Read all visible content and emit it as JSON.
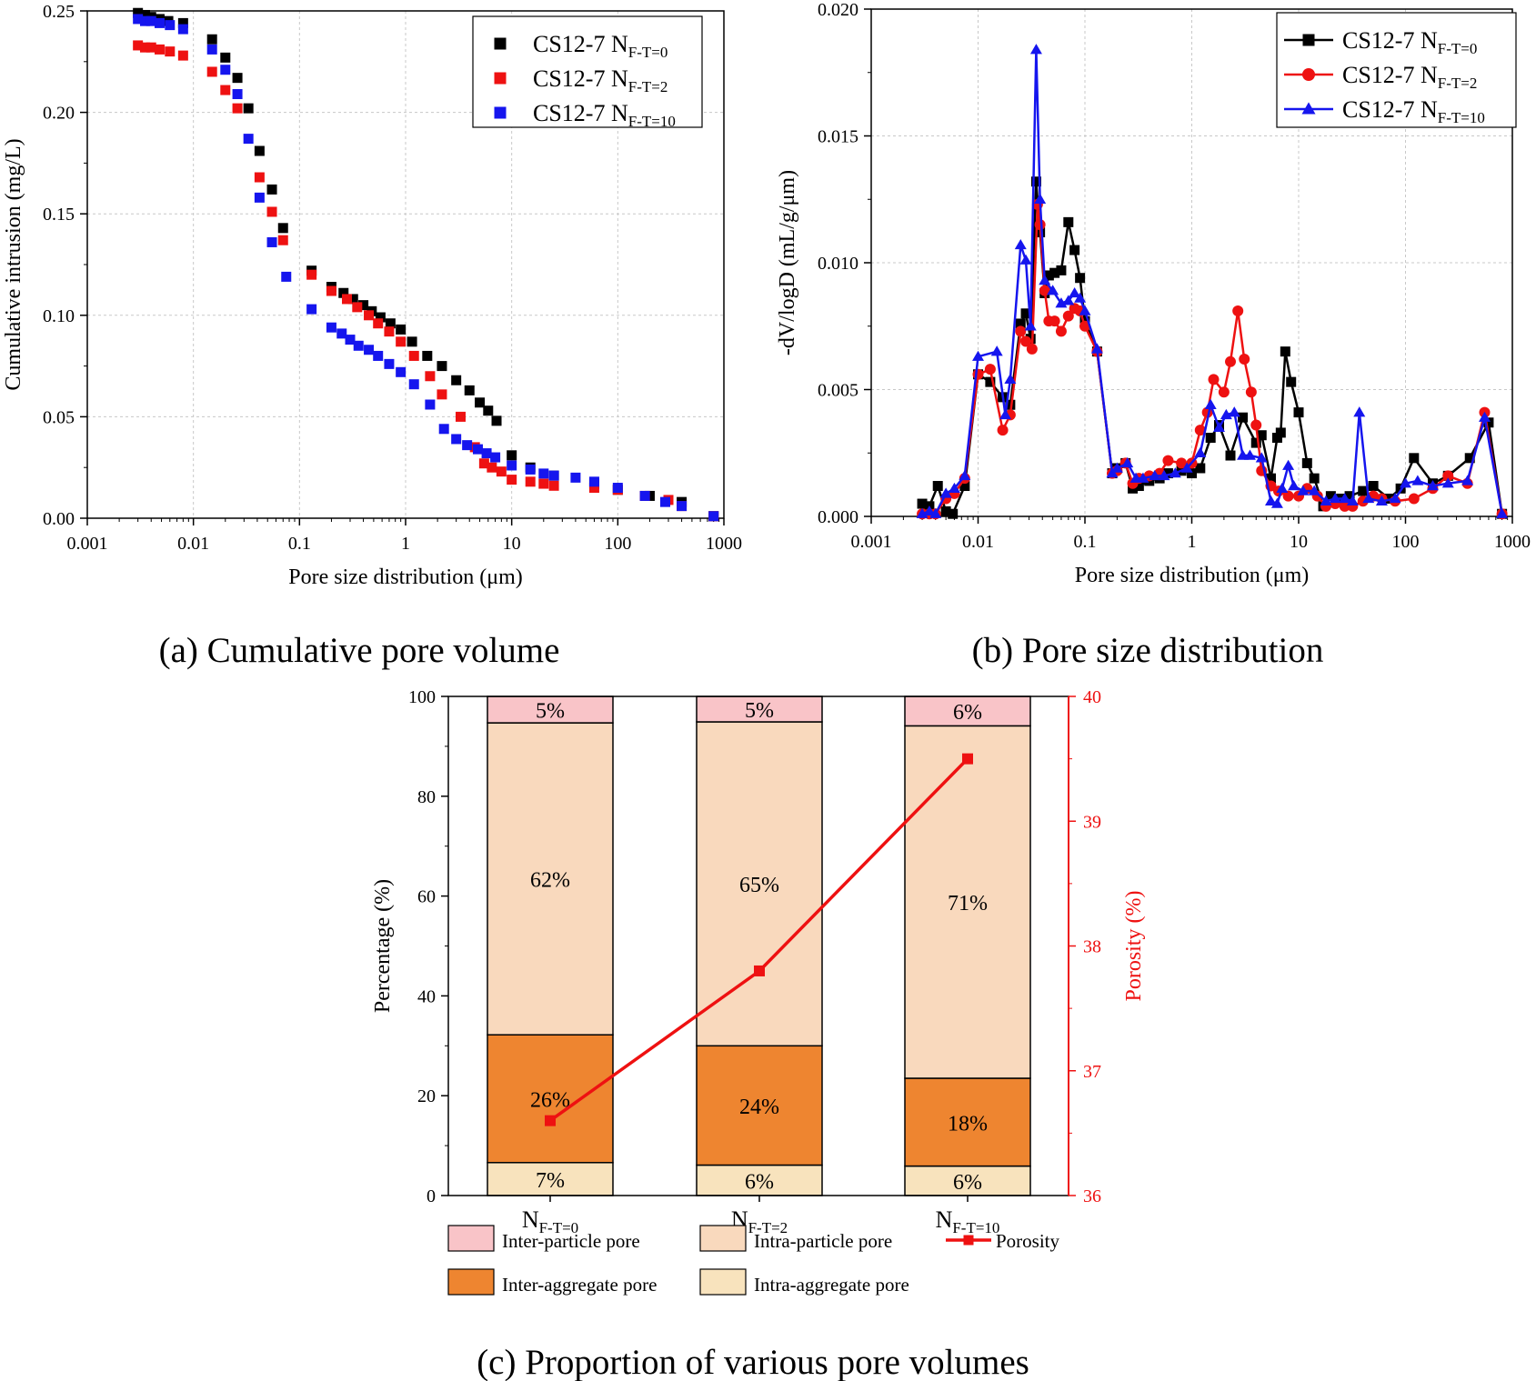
{
  "captions": {
    "a": "(a) Cumulative pore volume",
    "b": "(b) Pore size distribution",
    "c": "(c) Proportion of various pore volumes"
  },
  "series_labels": {
    "prefix": "CS12-7 N",
    "subs": [
      "F-T=0",
      "F-T=2",
      "F-T=10"
    ]
  },
  "colors": {
    "s0": "#000000",
    "s1": "#ee1111",
    "s2": "#1515ee"
  },
  "chart_data": [
    {
      "id": "a",
      "type": "scatter",
      "title": "",
      "xlabel": "Pore size distribution (μm)",
      "ylabel": "Cumulative intrusion (mg/L)",
      "xscale": "log",
      "xlim": [
        0.001,
        1000
      ],
      "ylim": [
        0,
        0.25
      ],
      "xticks": [
        0.001,
        0.01,
        0.1,
        1,
        10,
        100,
        1000
      ],
      "xtick_labels": [
        "0.001",
        "0.01",
        "0.1",
        "1",
        "10",
        "100",
        "1000"
      ],
      "yticks": [
        0,
        0.05,
        0.1,
        0.15,
        0.2,
        0.25
      ],
      "ytick_labels": [
        "0.00",
        "0.05",
        "0.10",
        "0.15",
        "0.20",
        "0.25"
      ],
      "grid": true,
      "legend": "top-right",
      "series": [
        {
          "name": "CS12-7 NF-T=0",
          "marker": "square",
          "x": [
            0.003,
            0.0035,
            0.004,
            0.0048,
            0.0058,
            0.008,
            0.015,
            0.02,
            0.026,
            0.033,
            0.042,
            0.055,
            0.07,
            0.13,
            0.2,
            0.26,
            0.32,
            0.4,
            0.48,
            0.58,
            0.72,
            0.9,
            1.15,
            1.6,
            2.2,
            3,
            4,
            5,
            6,
            7.2,
            10,
            15,
            25,
            60,
            100,
            200,
            400,
            800
          ],
          "y": [
            0.249,
            0.248,
            0.247,
            0.246,
            0.245,
            0.244,
            0.236,
            0.227,
            0.217,
            0.202,
            0.181,
            0.162,
            0.143,
            0.122,
            0.114,
            0.111,
            0.108,
            0.105,
            0.102,
            0.099,
            0.096,
            0.093,
            0.087,
            0.08,
            0.075,
            0.068,
            0.063,
            0.057,
            0.053,
            0.048,
            0.031,
            0.025,
            0.021,
            0.017,
            0.014,
            0.011,
            0.008,
            0.001
          ]
        },
        {
          "name": "CS12-7 NF-T=2",
          "marker": "square",
          "x": [
            0.003,
            0.0035,
            0.004,
            0.0048,
            0.006,
            0.008,
            0.015,
            0.02,
            0.026,
            0.042,
            0.055,
            0.07,
            0.13,
            0.2,
            0.28,
            0.35,
            0.45,
            0.55,
            0.7,
            0.9,
            1.2,
            1.7,
            2.2,
            3.3,
            4.5,
            5.5,
            6.5,
            8,
            10,
            15,
            20,
            25,
            60,
            100,
            180,
            300,
            400,
            800
          ],
          "y": [
            0.233,
            0.232,
            0.232,
            0.231,
            0.23,
            0.228,
            0.22,
            0.211,
            0.202,
            0.168,
            0.151,
            0.137,
            0.12,
            0.112,
            0.108,
            0.104,
            0.1,
            0.096,
            0.092,
            0.087,
            0.08,
            0.07,
            0.061,
            0.05,
            0.035,
            0.027,
            0.025,
            0.023,
            0.019,
            0.018,
            0.017,
            0.016,
            0.015,
            0.014,
            0.011,
            0.009,
            0.006,
            0.001
          ]
        },
        {
          "name": "CS12-7 NF-T=10",
          "marker": "square",
          "x": [
            0.003,
            0.0035,
            0.004,
            0.0048,
            0.006,
            0.008,
            0.015,
            0.02,
            0.026,
            0.033,
            0.042,
            0.055,
            0.075,
            0.13,
            0.2,
            0.25,
            0.3,
            0.36,
            0.45,
            0.55,
            0.7,
            0.9,
            1.2,
            1.7,
            2.3,
            3,
            3.8,
            4.8,
            5.8,
            7,
            10,
            15,
            20,
            25,
            40,
            60,
            100,
            180,
            280,
            400,
            800
          ],
          "y": [
            0.246,
            0.245,
            0.245,
            0.244,
            0.243,
            0.241,
            0.231,
            0.221,
            0.209,
            0.187,
            0.158,
            0.136,
            0.119,
            0.103,
            0.094,
            0.091,
            0.088,
            0.085,
            0.083,
            0.08,
            0.076,
            0.072,
            0.066,
            0.056,
            0.044,
            0.039,
            0.036,
            0.034,
            0.032,
            0.03,
            0.026,
            0.024,
            0.022,
            0.021,
            0.02,
            0.018,
            0.015,
            0.011,
            0.008,
            0.006,
            0.001
          ]
        }
      ]
    },
    {
      "id": "b",
      "type": "line",
      "title": "",
      "xlabel": "Pore size distribution (μm)",
      "ylabel": "-dV/logD (mL/g/μm)",
      "xscale": "log",
      "xlim": [
        0.001,
        1000
      ],
      "ylim": [
        0,
        0.02
      ],
      "xticks": [
        0.001,
        0.01,
        0.1,
        1,
        10,
        100,
        1000
      ],
      "xtick_labels": [
        "0.001",
        "0.01",
        "0.1",
        "1",
        "10",
        "100",
        "1000"
      ],
      "yticks": [
        0,
        0.005,
        0.01,
        0.015,
        0.02
      ],
      "ytick_labels": [
        "0.000",
        "0.005",
        "0.010",
        "0.015",
        "0.020"
      ],
      "grid": true,
      "legend": "top-right",
      "series": [
        {
          "name": "CS12-7 NF-T=0",
          "marker": "square",
          "x": [
            0.003,
            0.0035,
            0.0042,
            0.005,
            0.0058,
            0.0075,
            0.01,
            0.013,
            0.017,
            0.02,
            0.025,
            0.028,
            0.031,
            0.035,
            0.038,
            0.042,
            0.046,
            0.052,
            0.06,
            0.07,
            0.08,
            0.09,
            0.1,
            0.13,
            0.18,
            0.2,
            0.24,
            0.28,
            0.32,
            0.4,
            0.5,
            0.6,
            0.8,
            1,
            1.2,
            1.5,
            1.8,
            2.3,
            3,
            4,
            4.5,
            5.5,
            6.3,
            6.8,
            7.5,
            8.5,
            10,
            12,
            14,
            17,
            20,
            25,
            30,
            40,
            50,
            70,
            90,
            120,
            180,
            250,
            400,
            600,
            800
          ],
          "x_note": "",
          "y": [
            0.0005,
            0.0004,
            0.0012,
            0.0002,
            0.0001,
            0.0012,
            0.0056,
            0.0053,
            0.0047,
            0.0044,
            0.0076,
            0.008,
            0.007,
            0.0132,
            0.0112,
            0.0088,
            0.0095,
            0.0096,
            0.0097,
            0.0116,
            0.0105,
            0.0094,
            0.0077,
            0.0065,
            0.0017,
            0.0019,
            0.0021,
            0.0011,
            0.0012,
            0.0014,
            0.0015,
            0.0017,
            0.0018,
            0.0017,
            0.0019,
            0.0031,
            0.0036,
            0.0024,
            0.0039,
            0.0029,
            0.0032,
            0.0015,
            0.0031,
            0.0033,
            0.0065,
            0.0053,
            0.0041,
            0.0021,
            0.0015,
            0.0004,
            0.0008,
            0.0007,
            0.0008,
            0.001,
            0.0012,
            0.0007,
            0.0011,
            0.0023,
            0.0013,
            0.0016,
            0.0023,
            0.0037,
            0.0001
          ]
        },
        {
          "name": "CS12-7 NF-T=2",
          "marker": "circle",
          "x": [
            0.003,
            0.0035,
            0.004,
            0.005,
            0.006,
            0.0075,
            0.01,
            0.013,
            0.017,
            0.02,
            0.025,
            0.028,
            0.032,
            0.036,
            0.038,
            0.042,
            0.046,
            0.052,
            0.06,
            0.07,
            0.08,
            0.09,
            0.1,
            0.13,
            0.18,
            0.2,
            0.24,
            0.28,
            0.32,
            0.4,
            0.5,
            0.6,
            0.8,
            1,
            1.2,
            1.4,
            1.6,
            2,
            2.3,
            2.7,
            3.1,
            3.6,
            4,
            4.5,
            5.5,
            6.5,
            8,
            10,
            12,
            15,
            18,
            22,
            27,
            32,
            40,
            50,
            60,
            80,
            120,
            180,
            250,
            380,
            550,
            800
          ],
          "y": [
            0.0001,
            0.0001,
            0.0001,
            0.0007,
            0.0009,
            0.0015,
            0.0056,
            0.0058,
            0.0034,
            0.004,
            0.0073,
            0.0069,
            0.0066,
            0.0123,
            0.0115,
            0.0089,
            0.0077,
            0.0077,
            0.0073,
            0.0079,
            0.0082,
            0.0081,
            0.0075,
            0.0065,
            0.0017,
            0.0018,
            0.0021,
            0.0013,
            0.0015,
            0.0016,
            0.0017,
            0.0022,
            0.0021,
            0.0021,
            0.0034,
            0.0041,
            0.0054,
            0.0049,
            0.0061,
            0.0081,
            0.0062,
            0.0049,
            0.0036,
            0.0018,
            0.0012,
            0.001,
            0.0008,
            0.0008,
            0.0011,
            0.0008,
            0.0004,
            0.0005,
            0.0004,
            0.0004,
            0.0006,
            0.0008,
            0.0007,
            0.0006,
            0.0007,
            0.0011,
            0.0016,
            0.0013,
            0.0041,
            0.0001
          ]
        },
        {
          "name": "CS12-7 NF-T=10",
          "marker": "triangle",
          "x": [
            0.003,
            0.0035,
            0.004,
            0.005,
            0.006,
            0.0075,
            0.01,
            0.015,
            0.018,
            0.02,
            0.025,
            0.028,
            0.031,
            0.035,
            0.038,
            0.042,
            0.05,
            0.06,
            0.07,
            0.08,
            0.09,
            0.1,
            0.13,
            0.18,
            0.2,
            0.25,
            0.3,
            0.35,
            0.45,
            0.55,
            0.7,
            0.9,
            1.2,
            1.5,
            1.8,
            2.1,
            2.5,
            3,
            3.5,
            4.5,
            5.5,
            6.3,
            7,
            8,
            9,
            11,
            14,
            18,
            22,
            27,
            32,
            37,
            45,
            60,
            80,
            100,
            130,
            180,
            250,
            380,
            550,
            800
          ],
          "y": [
            0.0001,
            0.0002,
            0.0001,
            0.0009,
            0.0011,
            0.0016,
            0.0063,
            0.0065,
            0.004,
            0.0054,
            0.0107,
            0.0101,
            0.0075,
            0.0184,
            0.0125,
            0.0093,
            0.0089,
            0.0084,
            0.0085,
            0.0088,
            0.0086,
            0.0081,
            0.0066,
            0.0017,
            0.0019,
            0.0021,
            0.0015,
            0.0015,
            0.0016,
            0.0016,
            0.0017,
            0.0019,
            0.0025,
            0.0044,
            0.0035,
            0.004,
            0.0041,
            0.0024,
            0.0024,
            0.0023,
            0.0006,
            0.0005,
            0.0011,
            0.002,
            0.0012,
            0.001,
            0.001,
            0.0006,
            0.0007,
            0.0007,
            0.0006,
            0.0041,
            0.0007,
            0.0006,
            0.0007,
            0.0013,
            0.0014,
            0.0012,
            0.0013,
            0.0014,
            0.0039,
            0.0001
          ]
        }
      ]
    },
    {
      "id": "c",
      "type": "bar",
      "stacked": true,
      "title": "",
      "xlabel": "",
      "ylabel": "Percentage (%)",
      "y2label": "Porosity (%)",
      "ylim": [
        0,
        100
      ],
      "y2lim": [
        36,
        40
      ],
      "yticks": [
        0,
        20,
        40,
        60,
        80,
        100
      ],
      "ytick_labels": [
        "0",
        "20",
        "40",
        "60",
        "80",
        "100"
      ],
      "y2ticks": [
        36,
        37,
        38,
        39,
        40
      ],
      "y2tick_labels": [
        "36",
        "37",
        "38",
        "39",
        "40"
      ],
      "categories": [
        "N_F-T=0",
        "N_F-T=2",
        "N_F-T=10"
      ],
      "category_base": "N",
      "category_subs": [
        "F-T=0",
        "F-T=2",
        "F-T=10"
      ],
      "series": [
        {
          "name": "Intra-aggregate pore",
          "color": "#f8e3bd",
          "values": [
            6.6,
            6.1,
            5.9
          ],
          "labels": [
            "7%",
            "6%",
            "6%"
          ]
        },
        {
          "name": "Inter-aggregate pore",
          "color": "#ee8530",
          "values": [
            25.6,
            23.9,
            17.6
          ],
          "labels": [
            "26%",
            "24%",
            "18%"
          ]
        },
        {
          "name": "Intra-particle pore",
          "color": "#f9d9bd",
          "values": [
            62.5,
            64.9,
            70.6
          ],
          "labels": [
            "62%",
            "65%",
            "71%"
          ]
        },
        {
          "name": "Inter-particle pore",
          "color": "#f9c4c8",
          "values": [
            5.3,
            5.1,
            5.9
          ],
          "labels": [
            "5%",
            "5%",
            "6%"
          ]
        }
      ],
      "line_series": {
        "name": "Porosity",
        "color": "#ee1111",
        "axis": "right",
        "values": [
          36.6,
          37.8,
          39.5
        ]
      },
      "legend": "bottom",
      "legend_order": [
        "Inter-particle pore",
        "Intra-particle pore",
        "Porosity",
        "Inter-aggregate pore",
        "Intra-aggregate pore"
      ]
    }
  ]
}
